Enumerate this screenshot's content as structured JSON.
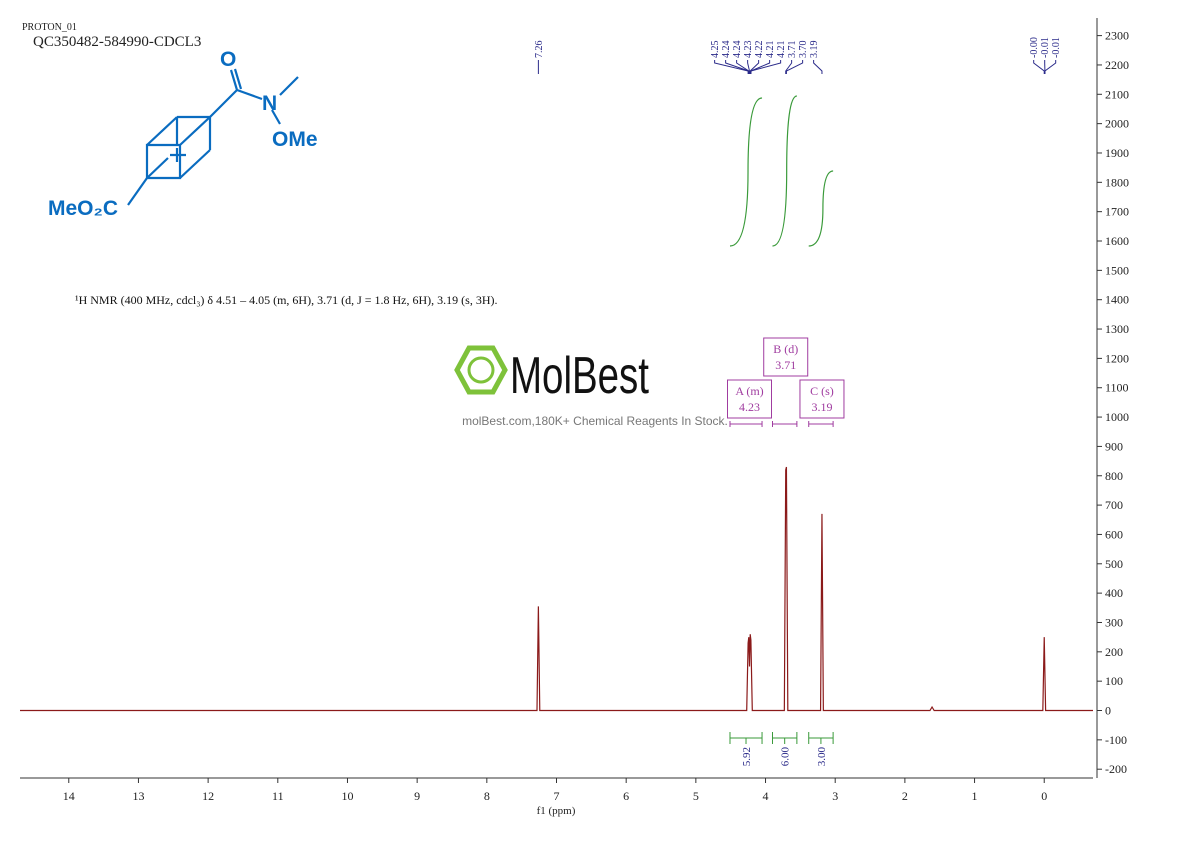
{
  "structure": {
    "labels": [
      "O",
      "N",
      "OMe",
      "MeO₂C"
    ]
  },
  "watermark": {
    "brand": "MolBest",
    "tagline": "molBest.com,180K+ Chemical Reagents In Stock."
  },
  "chart_data": {
    "type": "line",
    "title": "PROTON_01",
    "subtitle": "QC350482-584990-CDCL3",
    "annotation": "¹H NMR (400 MHz, cdcl₃) δ 4.51 – 4.05 (m, 6H), 3.71 (d, J = 1.8 Hz, 6H), 3.19 (s, 3H).",
    "xlabel": "f1 (ppm)",
    "color": "#8b1a1a",
    "x": [
      14.7,
      7.28,
      7.26,
      7.24,
      4.27,
      4.25,
      4.24,
      4.23,
      4.22,
      4.21,
      4.19,
      3.73,
      3.71,
      3.7,
      3.68,
      3.21,
      3.19,
      3.17,
      1.64,
      1.61,
      1.58,
      0.02,
      0,
      -0.02,
      -0.7
    ],
    "values": [
      0,
      0,
      355,
      0,
      0,
      230,
      250,
      150,
      260,
      240,
      0,
      0,
      820,
      830,
      0,
      0,
      670,
      0,
      0,
      12,
      0,
      0,
      250,
      0,
      0
    ],
    "xlim": [
      14.7,
      -0.7
    ],
    "xticks": [
      14,
      13,
      12,
      11,
      10,
      9,
      8,
      7,
      6,
      5,
      4,
      3,
      2,
      1,
      0
    ],
    "ylim": [
      -230,
      2360
    ],
    "yticks": [
      -200,
      -100,
      0,
      100,
      200,
      300,
      400,
      500,
      600,
      700,
      800,
      900,
      1000,
      1100,
      1200,
      1300,
      1400,
      1500,
      1600,
      1700,
      1800,
      1900,
      2000,
      2100,
      2200,
      2300
    ],
    "peak_labels": [
      7.26,
      4.25,
      4.24,
      4.24,
      4.23,
      4.22,
      4.21,
      4.21,
      3.71,
      {
        "value": 3.7,
        "label": "3.70"
      },
      3.19,
      {
        "value": 0,
        "label": "-0.00"
      },
      -0.01,
      -0.01
    ],
    "multiplets": [
      {
        "label": "A (m)",
        "shift": 4.23,
        "range": [
          4.51,
          4.05
        ]
      },
      {
        "label": "B (d)",
        "shift": 3.71,
        "range": [
          3.9,
          3.55
        ]
      },
      {
        "label": "C (s)",
        "shift": 3.19,
        "range": [
          3.38,
          3.03
        ]
      }
    ],
    "integrals": {
      "values": [
        5.92,
        6,
        3
      ],
      "value_labels": [
        "5.92",
        "6.00",
        "3.00"
      ],
      "ranges": [
        [
          4.51,
          4.05
        ],
        [
          3.9,
          3.55
        ],
        [
          3.38,
          3.03
        ]
      ],
      "color": "#3a9a3a"
    }
  }
}
